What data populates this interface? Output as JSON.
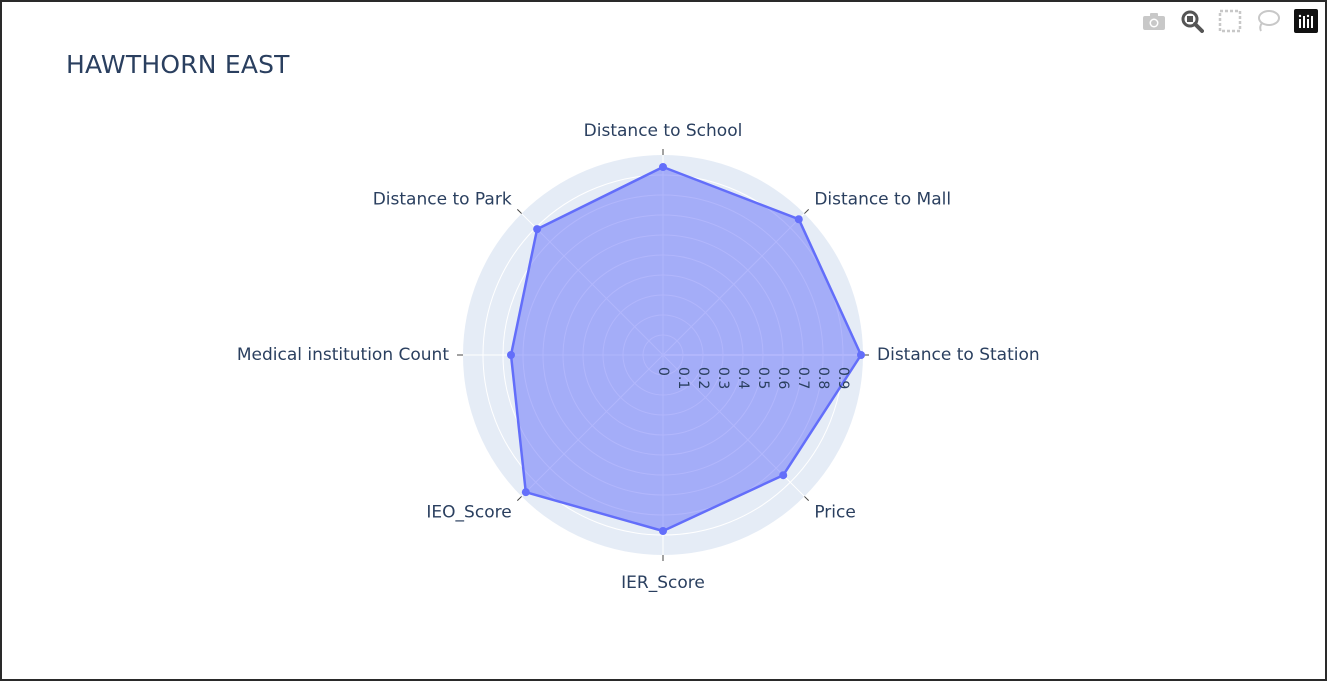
{
  "title": "HAWTHORN EAST",
  "modebar": {
    "icons": [
      "camera-icon",
      "zoom-icon",
      "box-select-icon",
      "lasso-icon",
      "plotly-logo-icon"
    ]
  },
  "colors": {
    "polar_bg": "#e5ecf6",
    "grid": "#ffffff",
    "trace_line": "#636efa",
    "trace_fill": "rgba(99,110,250,0.5)",
    "text": "#2a3f5f"
  },
  "chart_data": {
    "type": "radar",
    "title": "HAWTHORN EAST",
    "categories": [
      "Distance to Station",
      "Distance to Mall",
      "Distance to School",
      "Distance to Park",
      "Medical institution Count",
      "IEO_Score",
      "IER_Score",
      "Price"
    ],
    "angles_deg": [
      0,
      45,
      90,
      135,
      180,
      225,
      270,
      315
    ],
    "values": [
      0.99,
      0.96,
      0.94,
      0.89,
      0.76,
      0.97,
      0.88,
      0.85
    ],
    "closed": true,
    "fill": "toself",
    "radial_range": [
      0,
      1
    ],
    "radial_ticks": [
      0,
      0.1,
      0.2,
      0.3,
      0.4,
      0.5,
      0.6,
      0.7,
      0.8,
      0.9
    ],
    "radial_tick_labels": [
      "0",
      "0.1",
      "0.2",
      "0.3",
      "0.4",
      "0.5",
      "0.6",
      "0.7",
      "0.8",
      "0.9"
    ],
    "grid": true,
    "legend": "none"
  }
}
